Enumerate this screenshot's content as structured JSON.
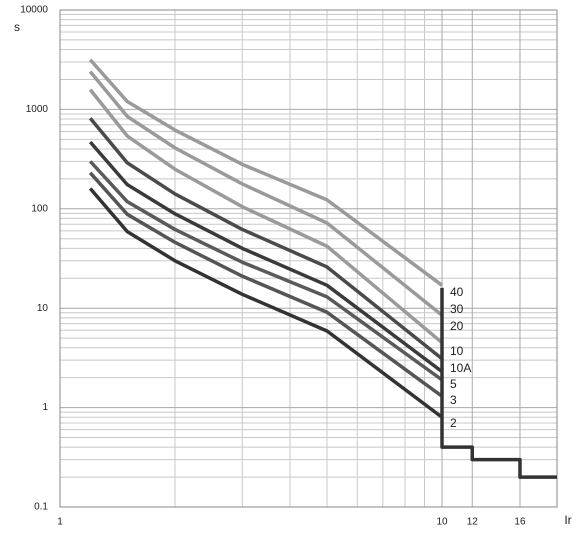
{
  "chart_data": {
    "type": "line",
    "y_label": "s",
    "x_label": "Ir",
    "xscale": "log",
    "yscale": "log",
    "grid": true,
    "xlim": [
      1,
      20
    ],
    "ylim": [
      0.1,
      10000
    ],
    "xticks": [
      1,
      10,
      12,
      16
    ],
    "yticks": [
      0.1,
      1,
      10,
      100,
      1000,
      10000
    ],
    "series": [
      {
        "name": "40",
        "color": "#9a9a9a",
        "x": [
          1.2,
          1.5,
          2,
          3,
          5,
          10
        ],
        "values": [
          3160,
          1200,
          620,
          280,
          123,
          17
        ]
      },
      {
        "name": "30",
        "color": "#9a9a9a",
        "x": [
          1.2,
          1.5,
          2,
          3,
          5,
          10
        ],
        "values": [
          2400,
          850,
          410,
          178,
          72,
          8.5
        ]
      },
      {
        "name": "20",
        "color": "#9a9a9a",
        "x": [
          1.2,
          1.5,
          2,
          3,
          5,
          10
        ],
        "values": [
          1580,
          540,
          250,
          105,
          42,
          4.5
        ]
      },
      {
        "name": "10",
        "color": "#4a4a4a",
        "x": [
          1.2,
          1.5,
          2,
          3,
          5,
          10
        ],
        "values": [
          815,
          290,
          141,
          62,
          26,
          3.1
        ]
      },
      {
        "name": "10A",
        "color": "#3a3a3a",
        "x": [
          1.2,
          1.5,
          2,
          3,
          5,
          10
        ],
        "values": [
          470,
          175,
          89,
          40,
          17,
          2.3
        ]
      },
      {
        "name": "5",
        "color": "#5a5a5a",
        "x": [
          1.2,
          1.5,
          2,
          3,
          5,
          10
        ],
        "values": [
          300,
          118,
          62,
          29,
          13,
          1.9
        ]
      },
      {
        "name": "3",
        "color": "#555555",
        "x": [
          1.2,
          1.5,
          2,
          3,
          5,
          10
        ],
        "values": [
          230,
          88,
          46,
          21,
          9.1,
          1.3
        ]
      },
      {
        "name": "2",
        "color": "#333333",
        "x": [
          1.2,
          1.5,
          2,
          3,
          5,
          10
        ],
        "values": [
          160,
          59,
          30,
          13.8,
          5.9,
          0.8
        ]
      },
      {
        "color": "#333333",
        "x": [
          10,
          10,
          12,
          12,
          16,
          16,
          20
        ],
        "values": [
          16,
          0.4,
          0.4,
          0.3,
          0.3,
          0.2,
          0.2
        ]
      }
    ]
  }
}
